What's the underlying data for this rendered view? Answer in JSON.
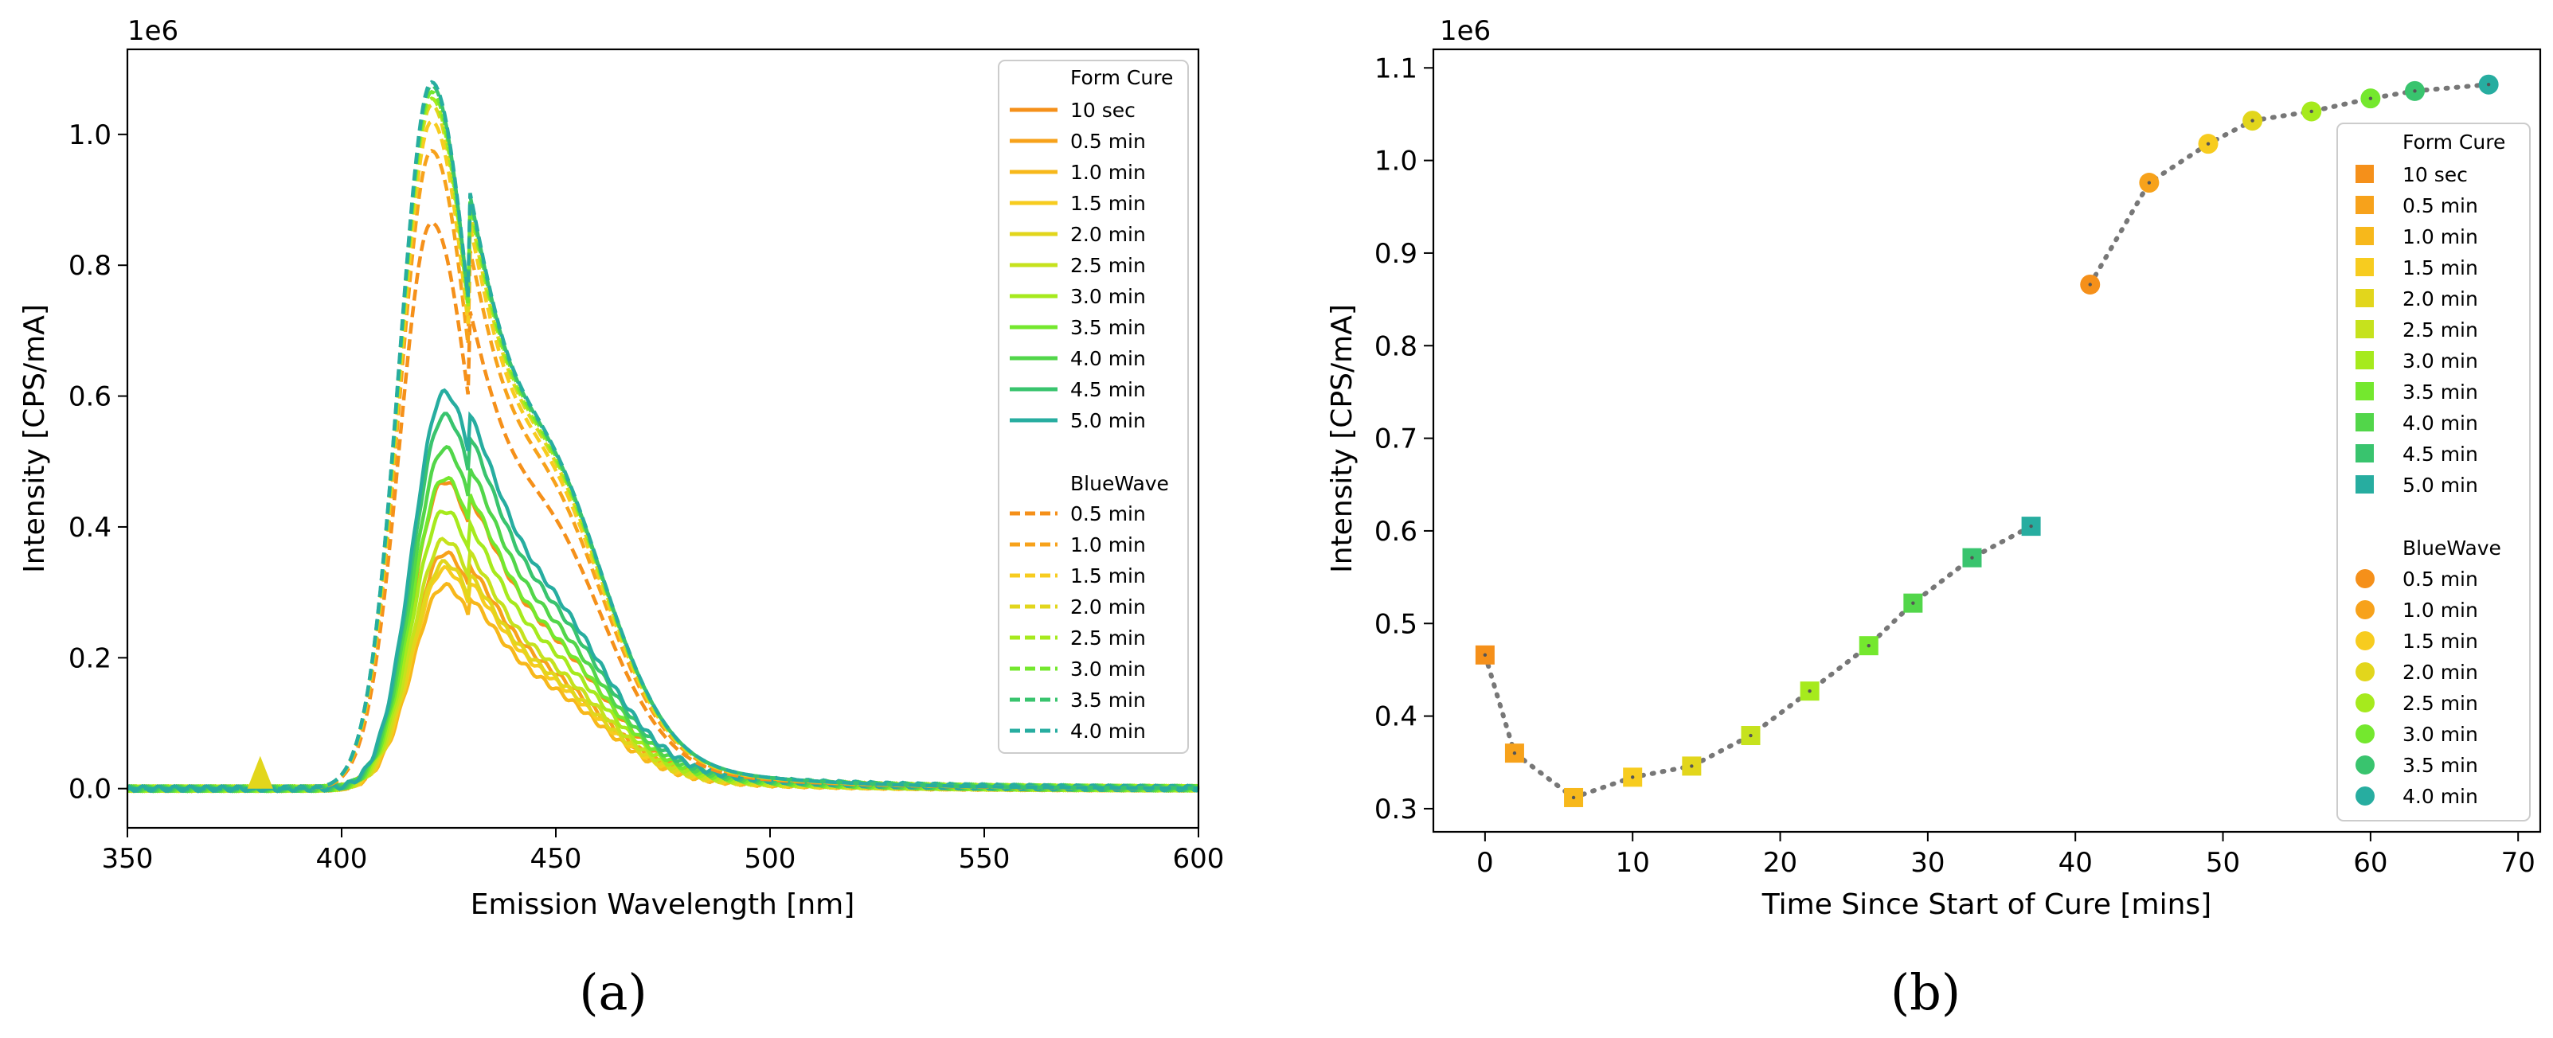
{
  "chart_data": [
    {
      "id": "a",
      "type": "line",
      "panel_label": "(a)",
      "xlabel": "Emission Wavelength [nm]",
      "ylabel": "Intensity [CPS/mA]",
      "y_exponent_label": "1e6",
      "xlim": [
        350,
        600
      ],
      "ylim": [
        -0.06,
        1.13
      ],
      "x_ticks": [
        350,
        400,
        450,
        500,
        550,
        600
      ],
      "y_ticks": [
        0.0,
        0.2,
        0.4,
        0.6,
        0.8,
        1.0
      ],
      "x_tick_labels": [
        "350",
        "400",
        "450",
        "500",
        "550",
        "600"
      ],
      "y_tick_labels": [
        "0.0",
        "0.2",
        "0.4",
        "0.6",
        "0.8",
        "1.0"
      ],
      "legend_position": "top-right",
      "legend": {
        "form_title": "Form Cure",
        "bluewave_title": "BlueWave"
      },
      "form_cure_series": [
        {
          "name": "10 sec",
          "color": "#f5901a",
          "peak": 0.47
        },
        {
          "name": "0.5 min",
          "color": "#f7a21b",
          "peak": 0.36
        },
        {
          "name": "1.0 min",
          "color": "#f7b81b",
          "peak": 0.31
        },
        {
          "name": "1.5 min",
          "color": "#f7cc1f",
          "peak": 0.335
        },
        {
          "name": "2.0 min",
          "color": "#e2d61c",
          "peak": 0.345
        },
        {
          "name": "2.5 min",
          "color": "#c6e21d",
          "peak": 0.38
        },
        {
          "name": "3.0 min",
          "color": "#a6ea1d",
          "peak": 0.425
        },
        {
          "name": "3.5 min",
          "color": "#74e82e",
          "peak": 0.475
        },
        {
          "name": "4.0 min",
          "color": "#52d64a",
          "peak": 0.52
        },
        {
          "name": "4.5 min",
          "color": "#39c46e",
          "peak": 0.57
        },
        {
          "name": "5.0 min",
          "color": "#27ada0",
          "peak": 0.605
        }
      ],
      "bluewave_series": [
        {
          "name": "0.5 min",
          "color": "#f5901a",
          "peak": 0.865
        },
        {
          "name": "1.0 min",
          "color": "#f7a21b",
          "peak": 0.975
        },
        {
          "name": "1.5 min",
          "color": "#f7cc1f",
          "peak": 1.02
        },
        {
          "name": "2.0 min",
          "color": "#e2d61c",
          "peak": 1.045
        },
        {
          "name": "2.5 min",
          "color": "#a6ea1d",
          "peak": 1.055
        },
        {
          "name": "3.0 min",
          "color": "#74e82e",
          "peak": 1.065
        },
        {
          "name": "3.5 min",
          "color": "#39c46e",
          "peak": 1.075
        },
        {
          "name": "4.0 min",
          "color": "#27ada0",
          "peak": 1.08
        }
      ]
    },
    {
      "id": "b",
      "type": "scatter",
      "panel_label": "(b)",
      "xlabel": "Time Since Start of Cure [mins]",
      "ylabel": "Intensity [CPS/mA]",
      "y_exponent_label": "1e6",
      "xlim": [
        -3.5,
        71.5
      ],
      "ylim": [
        0.275,
        1.12
      ],
      "x_ticks": [
        0,
        10,
        20,
        30,
        40,
        50,
        60,
        70
      ],
      "y_ticks": [
        0.3,
        0.4,
        0.5,
        0.6,
        0.7,
        0.8,
        0.9,
        1.0,
        1.1
      ],
      "x_tick_labels": [
        "0",
        "10",
        "20",
        "30",
        "40",
        "50",
        "60",
        "70"
      ],
      "y_tick_labels": [
        "0.3",
        "0.4",
        "0.5",
        "0.6",
        "0.7",
        "0.8",
        "0.9",
        "1.0",
        "1.1"
      ],
      "legend_position": "right",
      "legend": {
        "form_title": "Form Cure",
        "bluewave_title": "BlueWave"
      },
      "form_cure_points": [
        {
          "name": "10 sec",
          "x": 0,
          "y": 0.466,
          "color": "#f5901a"
        },
        {
          "name": "0.5 min",
          "x": 2,
          "y": 0.36,
          "color": "#f7a21b"
        },
        {
          "name": "1.0 min",
          "x": 6,
          "y": 0.312,
          "color": "#f7b81b"
        },
        {
          "name": "1.5 min",
          "x": 10,
          "y": 0.334,
          "color": "#f7cc1f"
        },
        {
          "name": "2.0 min",
          "x": 14,
          "y": 0.346,
          "color": "#e2d61c"
        },
        {
          "name": "2.5 min",
          "x": 18,
          "y": 0.379,
          "color": "#c6e21d"
        },
        {
          "name": "3.0 min",
          "x": 22,
          "y": 0.427,
          "color": "#a6ea1d"
        },
        {
          "name": "3.5 min",
          "x": 26,
          "y": 0.476,
          "color": "#74e82e"
        },
        {
          "name": "4.0 min",
          "x": 29,
          "y": 0.522,
          "color": "#52d64a"
        },
        {
          "name": "4.5 min",
          "x": 33,
          "y": 0.571,
          "color": "#39c46e"
        },
        {
          "name": "5.0 min",
          "x": 37,
          "y": 0.605,
          "color": "#27ada0"
        }
      ],
      "bluewave_points": [
        {
          "name": "0.5 min",
          "x": 41,
          "y": 0.866,
          "color": "#f5901a"
        },
        {
          "name": "1.0 min",
          "x": 45,
          "y": 0.976,
          "color": "#f7a21b"
        },
        {
          "name": "1.5 min",
          "x": 49,
          "y": 1.018,
          "color": "#f7cc1f"
        },
        {
          "name": "2.0 min",
          "x": 52,
          "y": 1.043,
          "color": "#e2d61c"
        },
        {
          "name": "2.5 min",
          "x": 56,
          "y": 1.053,
          "color": "#a6ea1d"
        },
        {
          "name": "3.0 min",
          "x": 60,
          "y": 1.067,
          "color": "#74e82e"
        },
        {
          "name": "3.5 min",
          "x": 63,
          "y": 1.075,
          "color": "#39c46e"
        },
        {
          "name": "4.0 min",
          "x": 68,
          "y": 1.082,
          "color": "#27ada0"
        }
      ]
    }
  ]
}
